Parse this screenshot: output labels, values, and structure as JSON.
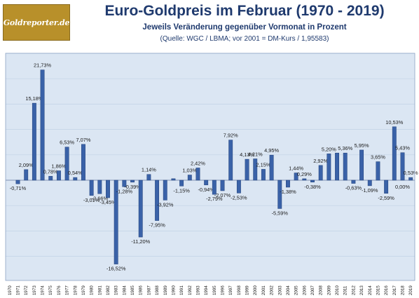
{
  "logo": {
    "text": "Goldreporter.de"
  },
  "header": {
    "title": "Euro-Goldpreis im Februar (1970 - 2019)",
    "subtitle": "Jeweils Veränderung gegenüber Vormonat in Prozent",
    "source": "(Quelle: WGC / LBMA; vor 2001 = DM-Kurs / 1,95583)"
  },
  "colors": {
    "bar": "#3a62a8",
    "bar_edge": "#22417a",
    "plot_background": "#dbe6f3",
    "gridline": "#c2d2e6",
    "zero_line": "#7f93b3"
  },
  "chart_data": {
    "type": "bar",
    "title": "Euro-Goldpreis im Februar (1970 - 2019)",
    "subtitle": "Jeweils Veränderung gegenüber Vormonat in Prozent",
    "categories": [
      "1970",
      "1971",
      "1972",
      "1973",
      "1974",
      "1975",
      "1976",
      "1977",
      "1978",
      "1979",
      "1980",
      "1981",
      "1982",
      "1983",
      "1984",
      "1985",
      "1986",
      "1987",
      "1988",
      "1989",
      "1990",
      "1991",
      "1992",
      "1993",
      "1994",
      "1995",
      "1996",
      "1997",
      "1998",
      "1999",
      "2000",
      "2001",
      "2002",
      "2003",
      "2004",
      "2005",
      "2006",
      "2007",
      "2008",
      "2009",
      "2010",
      "2011",
      "2012",
      "2013",
      "2014",
      "2015",
      "2016",
      "2017",
      "2018",
      "2019"
    ],
    "values": [
      0.0,
      -0.71,
      2.09,
      15.18,
      21.73,
      0.78,
      1.86,
      6.53,
      0.54,
      7.07,
      -3.01,
      -2.66,
      -3.45,
      -16.52,
      -1.28,
      -0.39,
      -11.2,
      1.14,
      -7.95,
      -3.92,
      0.3,
      -1.15,
      1.03,
      2.42,
      -0.94,
      -2.79,
      -2.07,
      7.92,
      -2.53,
      4.13,
      4.21,
      2.15,
      4.95,
      -5.59,
      -1.38,
      1.44,
      0.29,
      -0.38,
      2.92,
      5.2,
      5.36,
      5.36,
      -0.63,
      5.95,
      -1.09,
      3.65,
      -2.59,
      10.53,
      5.43,
      0.53
    ],
    "labels": [
      "",
      "-0,71%",
      "2,09%",
      "15,18%",
      "21,73%",
      "0,78%",
      "1,86%",
      "6,53%",
      "0,54%",
      "7,07%",
      "-3,01%",
      "-2,66%",
      "-3,45%",
      "-16,52%",
      "-1,28%",
      "-0,39%",
      "-11,20%",
      "1,14%",
      "-7,95%",
      "-3,92%",
      "",
      "-1,15%",
      "1,03%",
      "2,42%",
      "-0,94%",
      "-2,79%",
      "-2,07%",
      "7,92%",
      "-2,53%",
      "4,13%",
      "4,21%",
      "2,15%",
      "4,95%",
      "-5,59%",
      "-1,38%",
      "1,44%",
      "0,29%",
      "-0,38%",
      "2,92%",
      "5,20%",
      "",
      "5,36%",
      "-0,63%",
      "5,95%",
      "-1,09%",
      "3,65%",
      "-2,59%",
      "10,53%",
      "5,43%",
      "0,53%"
    ],
    "extra_labels": [
      "0,00%"
    ],
    "ylim": [
      -20,
      25
    ],
    "grid": true
  }
}
